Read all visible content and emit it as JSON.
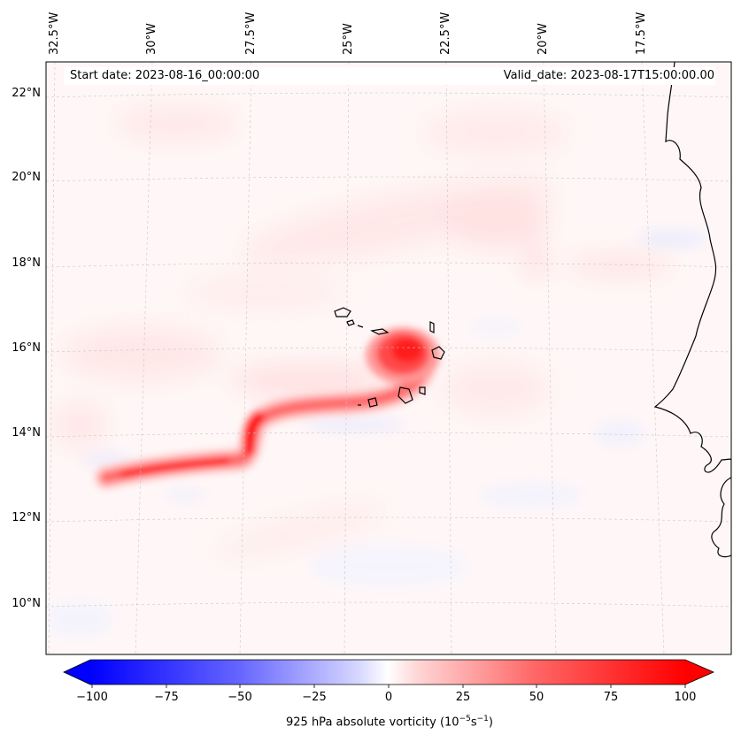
{
  "header": {
    "start_date": "Start date: 2023-08-16_00:00:00",
    "valid_date": "Valid_date: 2023-08-17T15:00:00.00"
  },
  "longitude_labels": [
    "32.5°W",
    "30°W",
    "27.5°W",
    "25°W",
    "22.5°W",
    "20°W",
    "17.5°W"
  ],
  "latitude_labels": [
    "22°N",
    "20°N",
    "18°N",
    "16°N",
    "14°N",
    "12°N",
    "10°N"
  ],
  "colorbar": {
    "ticks": [
      "−100",
      "−75",
      "−50",
      "−25",
      "0",
      "25",
      "50",
      "75",
      "100"
    ],
    "label": "925 hPa absolute vorticity (10",
    "label_exp1": "−5",
    "label_mid": "s",
    "label_exp2": "−1",
    "label_end": ")",
    "min": -100,
    "max": 100,
    "extend": "both"
  },
  "colors": {
    "positive": "#ff0000",
    "negative": "#0000ff",
    "coastline": "#000000"
  }
}
